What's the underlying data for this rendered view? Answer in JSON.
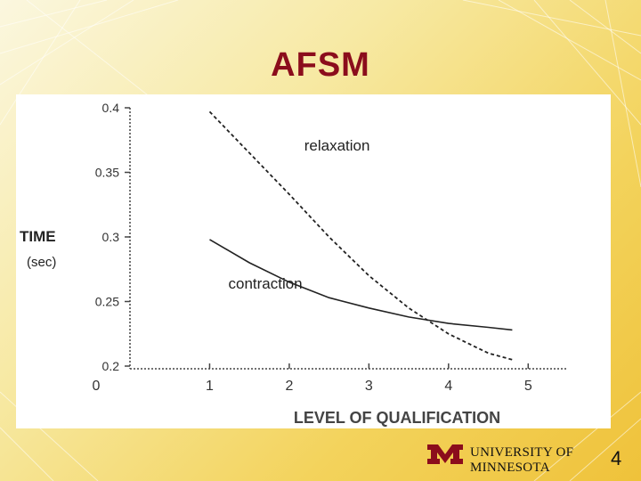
{
  "slide": {
    "title": "AFSM",
    "footer": {
      "university": "UNIVERSITY OF MINNESOTA",
      "page_number": "4"
    },
    "colors": {
      "title": "#8b0d1c",
      "logo": "#8b0d1c"
    }
  },
  "chart_data": {
    "type": "line",
    "title": "",
    "ylabel": "TIME",
    "ylabel_unit": "(sec)",
    "xlabel": "LEVEL OF QUALIFICATION",
    "xlim": [
      0,
      5.5
    ],
    "ylim": [
      0.2,
      0.4
    ],
    "xticks": [
      {
        "value": 0,
        "label": "0"
      },
      {
        "value": 1,
        "label": "1"
      },
      {
        "value": 2,
        "label": "2"
      },
      {
        "value": 3,
        "label": "3"
      },
      {
        "value": 4,
        "label": "4"
      },
      {
        "value": 5,
        "label": "5"
      }
    ],
    "yticks": [
      {
        "value": 0.2,
        "label": "0.2"
      },
      {
        "value": 0.25,
        "label": "0.25"
      },
      {
        "value": 0.3,
        "label": "0.3"
      },
      {
        "value": 0.35,
        "label": "0.35"
      },
      {
        "value": 0.4,
        "label": "0.4"
      }
    ],
    "grid": false,
    "series": [
      {
        "name": "relaxation",
        "style": "dashed",
        "x": [
          1.0,
          1.5,
          2.0,
          2.5,
          3.0,
          3.5,
          4.0,
          4.5,
          4.8
        ],
        "y": [
          0.397,
          0.365,
          0.333,
          0.3,
          0.27,
          0.245,
          0.225,
          0.21,
          0.205
        ]
      },
      {
        "name": "contraction",
        "style": "solid",
        "x": [
          1.0,
          1.5,
          2.0,
          2.5,
          3.0,
          3.5,
          4.0,
          4.5,
          4.8
        ],
        "y": [
          0.298,
          0.28,
          0.265,
          0.253,
          0.245,
          0.238,
          0.233,
          0.23,
          0.228
        ]
      }
    ],
    "annotations": [
      {
        "text": "relaxation",
        "x": 2.6,
        "y": 0.367
      },
      {
        "text": "contraction",
        "x": 1.7,
        "y": 0.26
      }
    ]
  }
}
